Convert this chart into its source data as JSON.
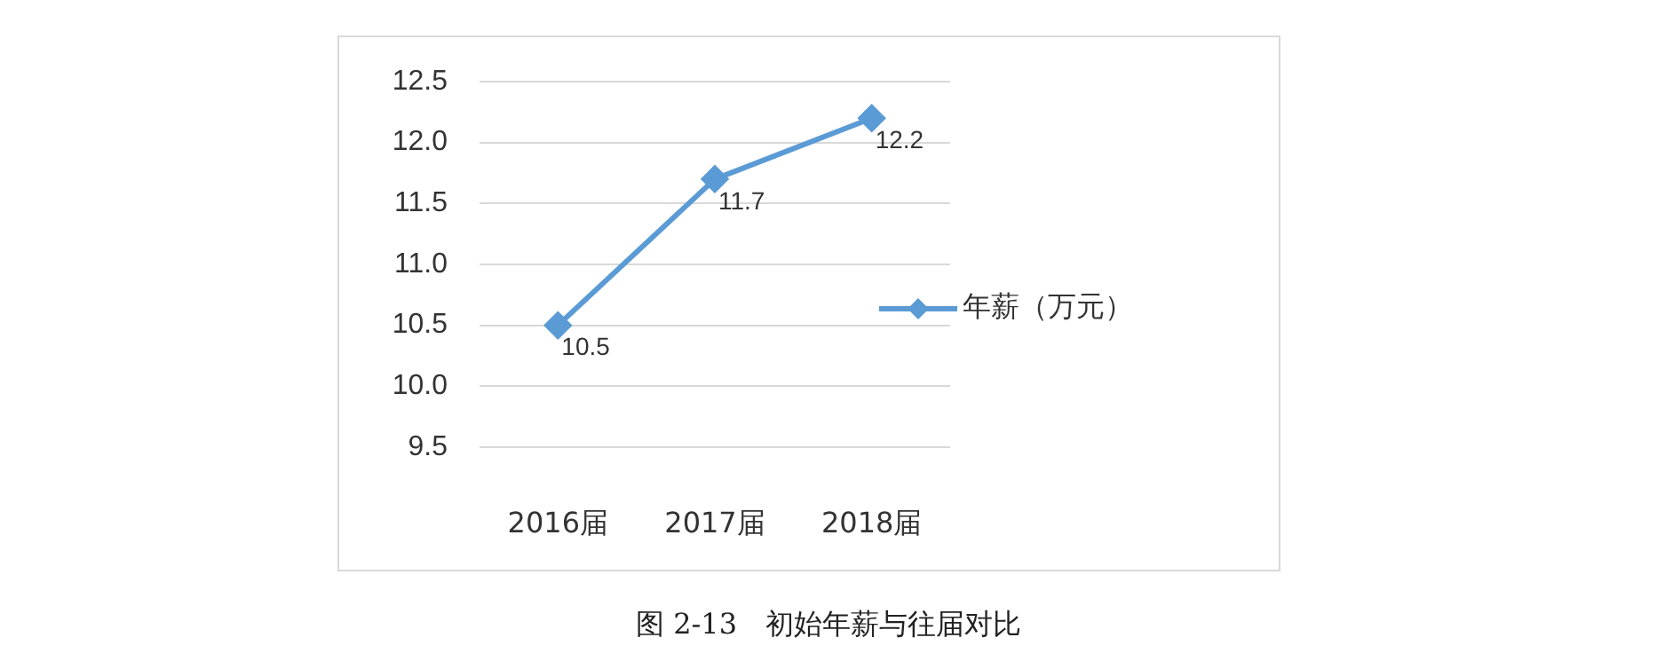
{
  "chart_data": {
    "type": "line",
    "annotations": [
      "图 2-13　初始年薪与往届对比"
    ],
    "categories": [
      "2016届",
      "2017届",
      "2018届"
    ],
    "series": [
      {
        "name": "年薪（万元）",
        "color": "#5b9bd5",
        "values": [
          10.5,
          11.7,
          12.2
        ]
      }
    ],
    "ylim": [
      9.5,
      12.5
    ],
    "yticks": [
      9.5,
      {
        "value": 10,
        "label": "10.0"
      },
      10.5,
      {
        "value": 11,
        "label": "11.0"
      },
      11.5,
      {
        "value": 12,
        "label": "12.0"
      },
      12.5
    ],
    "grid": "y",
    "legend": "right",
    "marker": "diamond",
    "line_style": "solid",
    "data_labels": true
  }
}
